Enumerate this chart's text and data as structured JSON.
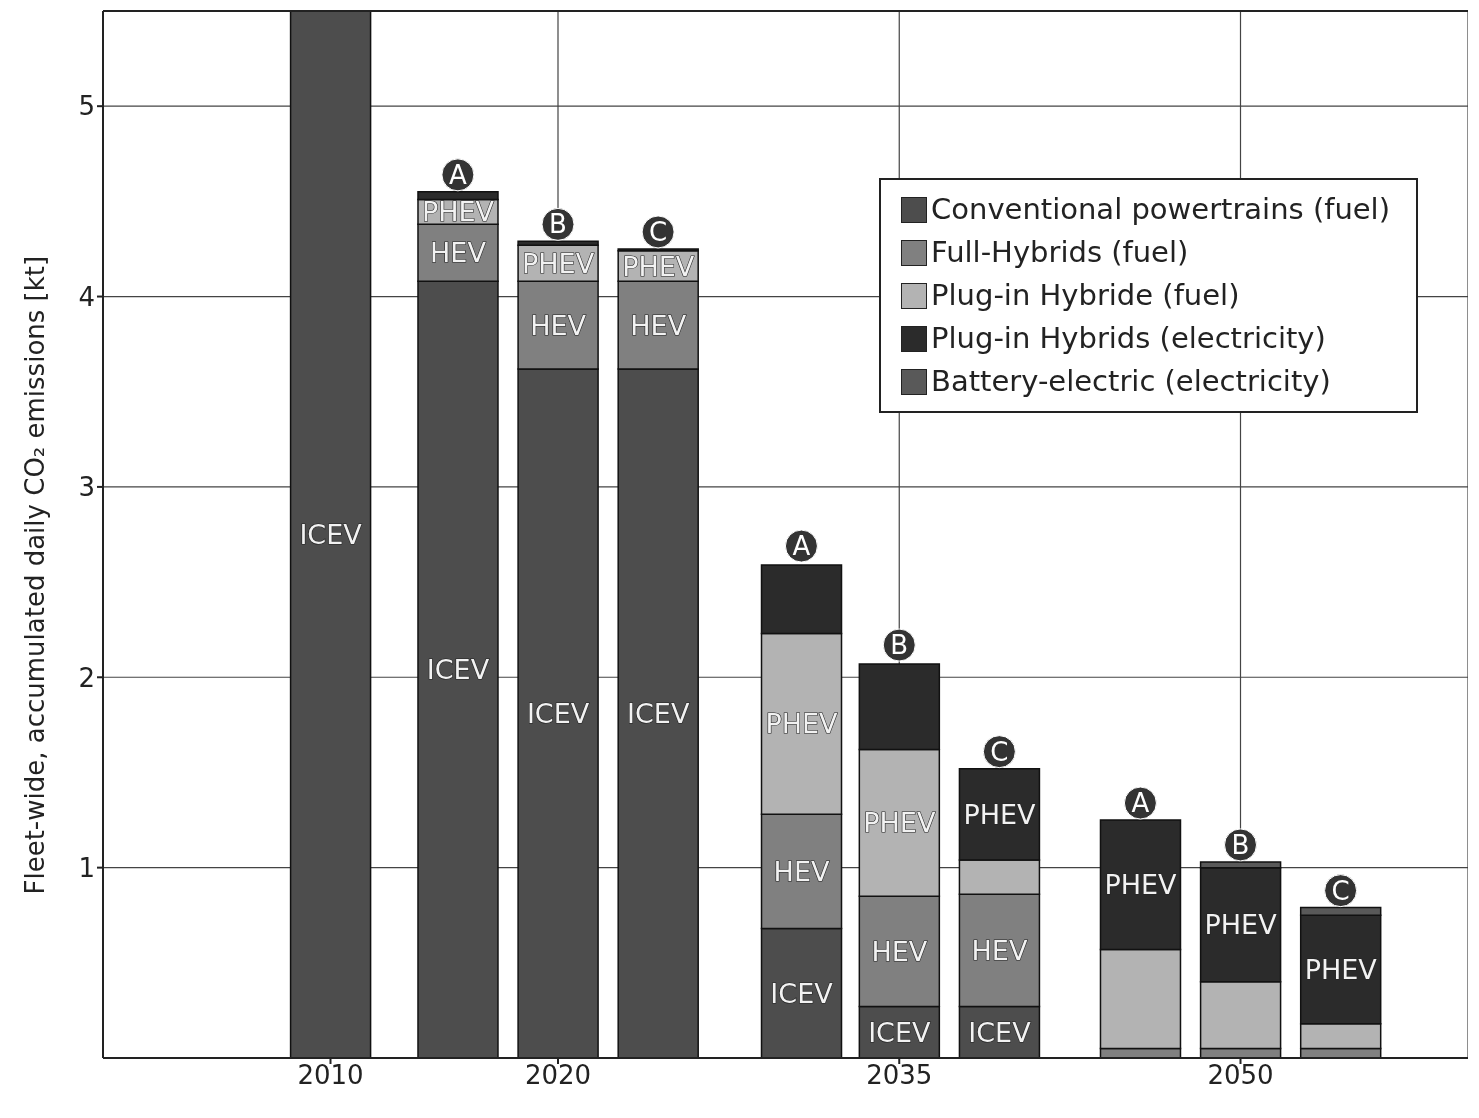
{
  "chart_data": {
    "type": "bar",
    "stacked": true,
    "ylabel": "Fleet-wide, accumulated daily CO₂ emissions [kt]",
    "x": [
      2010,
      2015.6,
      2020,
      2024.4,
      2030.7,
      2035,
      2039.4,
      2045.6,
      2050,
      2054.4
    ],
    "xlim": [
      2000,
      2060
    ],
    "xticks": [
      2010,
      2020,
      2035,
      2050
    ],
    "ylim": [
      0,
      5.5
    ],
    "yticks": [
      1,
      2,
      3,
      4,
      5
    ],
    "grid": true,
    "legend": "top right",
    "series": [
      {
        "name": "Conventional powertrains (fuel)",
        "color": "#4d4d4d",
        "values": [
          5.5,
          4.08,
          3.62,
          3.62,
          0.68,
          0.27,
          0.27,
          null,
          null,
          null
        ],
        "value_labels": [
          "ICEV",
          "ICEV",
          "ICEV",
          "ICEV",
          "ICEV",
          "ICEV",
          "ICEV",
          null,
          null,
          null
        ]
      },
      {
        "name": "Full-Hybrids (fuel)",
        "color": "#808080",
        "values": [
          null,
          0.3,
          0.46,
          0.46,
          0.6,
          0.58,
          0.59,
          0.05,
          0.05,
          0.05
        ],
        "value_labels": [
          null,
          "HEV",
          "HEV",
          "HEV",
          "HEV",
          "HEV",
          "HEV",
          null,
          null,
          null
        ]
      },
      {
        "name": "Plug-in Hybride (fuel)",
        "color": "#b3b3b3",
        "values": [
          null,
          0.13,
          0.19,
          0.16,
          0.95,
          0.77,
          0.18,
          0.52,
          0.35,
          0.13
        ],
        "value_labels": [
          null,
          "PHEV",
          "PHEV",
          "PHEV",
          "PHEV",
          "PHEV",
          null,
          null,
          null,
          null
        ]
      },
      {
        "name": "Plug-in Hybrids (electricity)",
        "color": "#2b2b2b",
        "values": [
          null,
          0.04,
          0.02,
          0.01,
          0.36,
          0.45,
          0.48,
          0.68,
          0.6,
          0.57
        ],
        "value_labels": [
          null,
          null,
          null,
          null,
          null,
          null,
          "PHEV",
          "PHEV",
          "PHEV",
          "PHEV"
        ]
      },
      {
        "name": "Battery-electric (electricity)",
        "color": "#595959",
        "values": [
          null,
          null,
          null,
          null,
          null,
          null,
          null,
          null,
          0.03,
          0.04
        ]
      }
    ],
    "annotations": [
      {
        "text": "A",
        "x": 2015.6,
        "y": 4.55
      },
      {
        "text": "B",
        "x": 2020,
        "y": 4.29
      },
      {
        "text": "C",
        "x": 2024.4,
        "y": 4.25
      },
      {
        "text": "A",
        "x": 2030.7,
        "y": 2.6
      },
      {
        "text": "B",
        "x": 2035,
        "y": 2.08
      },
      {
        "text": "C",
        "x": 2039.4,
        "y": 1.52
      },
      {
        "text": "A",
        "x": 2045.6,
        "y": 1.25
      },
      {
        "text": "B",
        "x": 2050,
        "y": 1.03
      },
      {
        "text": "C",
        "x": 2054.4,
        "y": 0.79
      }
    ]
  }
}
